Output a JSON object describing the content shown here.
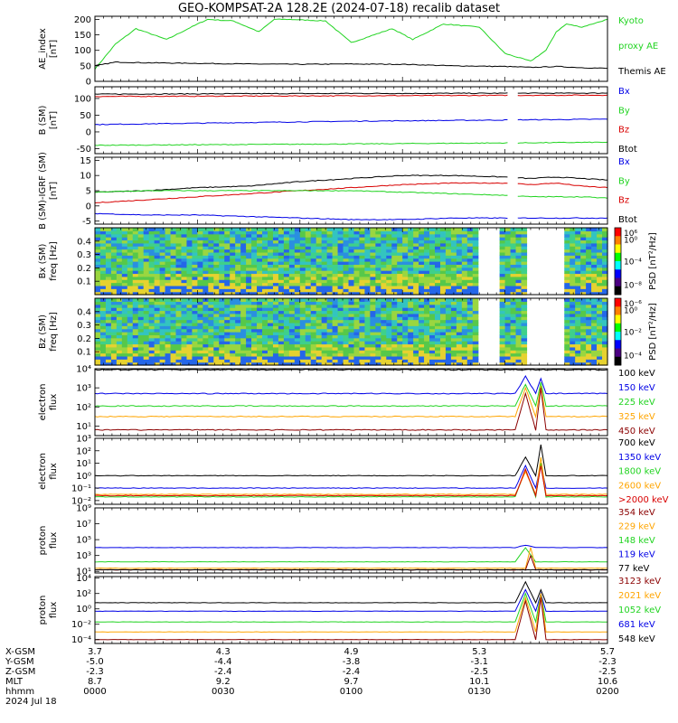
{
  "title": "GEO-KOMPSAT-2A 128.2E (2024-07-18) recalib dataset",
  "colors": {
    "black": "#000000",
    "blue": "#0000e6",
    "green": "#22d422",
    "red": "#d80000",
    "orange": "#ffa500",
    "darkred": "#8b0000"
  },
  "panels": [
    {
      "id": "ae",
      "type": "line",
      "ylabel": [
        "AE_index",
        "[nT]"
      ],
      "ylim": [
        0,
        210
      ],
      "ticks": [
        "0",
        "50",
        "100",
        "150",
        "200"
      ],
      "tickvals": [
        0,
        50,
        100,
        150,
        200
      ],
      "scale": "linear",
      "legend": [
        {
          "text": "Kyoto",
          "color": "#22d422"
        },
        {
          "text": "proxy AE",
          "color": "#22d422"
        },
        {
          "text": "Themis AE",
          "color": "#000000"
        }
      ],
      "series": [
        {
          "name": "Kyoto proxy AE",
          "color": "#22d422",
          "x": [
            0,
            4,
            8,
            14,
            20,
            22,
            27,
            32,
            35,
            38,
            45,
            50,
            58,
            62,
            68,
            75,
            80,
            85,
            88,
            90,
            92,
            95,
            98,
            100
          ],
          "y": [
            40,
            120,
            170,
            135,
            185,
            200,
            195,
            160,
            200,
            200,
            195,
            125,
            170,
            135,
            185,
            175,
            90,
            65,
            100,
            160,
            185,
            175,
            190,
            200
          ]
        },
        {
          "name": "Themis AE",
          "color": "#000000",
          "x": [
            0,
            4,
            10,
            20,
            30,
            40,
            50,
            60,
            70,
            80,
            85,
            90,
            95,
            100
          ],
          "y": [
            50,
            62,
            60,
            58,
            56,
            55,
            56,
            55,
            50,
            48,
            45,
            48,
            44,
            42
          ]
        }
      ]
    },
    {
      "id": "bsm",
      "type": "line",
      "ylabel": [
        "B (SM)",
        "[nT]"
      ],
      "ylim": [
        -65,
        135
      ],
      "ticks": [
        "-50",
        "0",
        "50",
        "100"
      ],
      "tickvals": [
        -50,
        0,
        50,
        100
      ],
      "scale": "linear",
      "legend": [
        {
          "text": "Bx",
          "color": "#0000e6"
        },
        {
          "text": "By",
          "color": "#22d422"
        },
        {
          "text": "Bz",
          "color": "#d80000"
        },
        {
          "text": "Btot",
          "color": "#000000"
        }
      ],
      "series": [
        {
          "name": "Btot",
          "color": "#000000",
          "x": [
            0,
            50,
            100
          ],
          "y": [
            113,
            115,
            116
          ]
        },
        {
          "name": "Bz",
          "color": "#d80000",
          "x": [
            0,
            50,
            100
          ],
          "y": [
            106,
            108,
            110
          ]
        },
        {
          "name": "Bx",
          "color": "#0000e6",
          "x": [
            0,
            50,
            100
          ],
          "y": [
            22,
            32,
            38
          ]
        },
        {
          "name": "By",
          "color": "#22d422",
          "x": [
            0,
            50,
            100
          ],
          "y": [
            -40,
            -36,
            -31
          ]
        }
      ]
    },
    {
      "id": "digrf",
      "type": "line",
      "ylabel": [
        "B (SM)-IGRF (SM)",
        "[nT]"
      ],
      "ylim": [
        -6,
        16
      ],
      "ticks": [
        "-5",
        "0",
        "5",
        "10",
        "15"
      ],
      "tickvals": [
        -5,
        0,
        5,
        10,
        15
      ],
      "scale": "linear",
      "legend": [
        {
          "text": "Bx",
          "color": "#0000e6"
        },
        {
          "text": "By",
          "color": "#22d422"
        },
        {
          "text": "Bz",
          "color": "#d80000"
        },
        {
          "text": "Btot",
          "color": "#000000"
        }
      ],
      "series": [
        {
          "name": "Btot",
          "color": "#000000",
          "x": [
            0,
            10,
            20,
            30,
            40,
            50,
            60,
            70,
            80,
            85,
            90,
            95,
            100
          ],
          "y": [
            4.5,
            5,
            6,
            6.5,
            8,
            9,
            10,
            10,
            9.5,
            9,
            9.5,
            9,
            8.5
          ]
        },
        {
          "name": "Bz",
          "color": "#d80000",
          "x": [
            0,
            10,
            20,
            30,
            40,
            50,
            60,
            70,
            80,
            85,
            90,
            95,
            100
          ],
          "y": [
            1,
            2,
            3,
            4,
            5,
            6,
            7,
            7.5,
            7.5,
            7,
            7.5,
            6.5,
            6
          ]
        },
        {
          "name": "By",
          "color": "#22d422",
          "x": [
            0,
            10,
            20,
            30,
            40,
            50,
            60,
            70,
            80,
            85,
            90,
            95,
            100
          ],
          "y": [
            4.5,
            5,
            5,
            5,
            5,
            5,
            4.5,
            4,
            3.5,
            3,
            3,
            3,
            2.5
          ]
        },
        {
          "name": "Bx",
          "color": "#0000e6",
          "x": [
            0,
            10,
            20,
            30,
            40,
            50,
            60,
            70,
            80,
            85,
            90,
            95,
            100
          ],
          "y": [
            -2.5,
            -3,
            -3,
            -3.5,
            -4,
            -4.5,
            -4.5,
            -4,
            -4,
            -4,
            -4,
            -4,
            -4
          ]
        }
      ]
    },
    {
      "id": "bxspec",
      "type": "spectrogram",
      "ylabel": [
        "Bx (SM)",
        "freq [Hz]"
      ],
      "ylim": [
        0,
        0.5
      ],
      "ticks": [
        "0.1",
        "0.2",
        "0.3",
        "0.4"
      ],
      "tickvals": [
        0.1,
        0.2,
        0.3,
        0.4
      ],
      "colorbar": {
        "label": "PSD [nT²/Hz]",
        "ticks": [
          "10⁰",
          "10⁻⁴",
          "10⁻⁸",
          "10⁶"
        ]
      },
      "gaps": [
        [
          74,
          78
        ],
        [
          84,
          91
        ]
      ]
    },
    {
      "id": "bzspec",
      "type": "spectrogram",
      "ylabel": [
        "Bz (SM)",
        "freq [Hz]"
      ],
      "ylim": [
        0,
        0.5
      ],
      "ticks": [
        "0.1",
        "0.2",
        "0.3",
        "0.4"
      ],
      "tickvals": [
        0.1,
        0.2,
        0.3,
        0.4
      ],
      "colorbar": {
        "label": "PSD [nT²/Hz]",
        "ticks": [
          "10⁰",
          "10⁻²",
          "10⁻⁴",
          "10⁻⁶"
        ]
      },
      "gaps": [
        [
          74,
          78
        ],
        [
          84,
          91
        ]
      ]
    },
    {
      "id": "eflux1",
      "type": "line",
      "ylabel": [
        "electron",
        "flux"
      ],
      "ylim": [
        0.5,
        4.0
      ],
      "ticks": [
        "10⁴",
        "10³",
        "10²",
        "10¹"
      ],
      "tickvals": [
        4,
        3,
        2,
        1
      ],
      "scale": "log10",
      "legend": [
        {
          "text": "100 keV",
          "color": "#000000"
        },
        {
          "text": "150 keV",
          "color": "#0000e6"
        },
        {
          "text": "225 keV",
          "color": "#22d422"
        },
        {
          "text": "325 keV",
          "color": "#ffa500"
        },
        {
          "text": "450 keV",
          "color": "#8b0000"
        }
      ],
      "series": [
        {
          "name": "100 keV",
          "color": "#000000",
          "x": [
            0,
            100
          ],
          "y": [
            3.95,
            3.95
          ]
        },
        {
          "name": "150 keV",
          "color": "#0000e6",
          "x": [
            0,
            82,
            84,
            86,
            87,
            88,
            100
          ],
          "y": [
            2.7,
            2.7,
            3.6,
            2.7,
            3.5,
            2.7,
            2.7
          ]
        },
        {
          "name": "225 keV",
          "color": "#22d422",
          "x": [
            0,
            82,
            84,
            86,
            87,
            88,
            100
          ],
          "y": [
            2.05,
            2.05,
            3.2,
            2.05,
            3.3,
            2.05,
            2.05
          ]
        },
        {
          "name": "325 keV",
          "color": "#ffa500",
          "x": [
            0,
            82,
            84,
            86,
            87,
            88,
            100
          ],
          "y": [
            1.5,
            1.5,
            3.0,
            1.5,
            3.1,
            1.5,
            1.5
          ]
        },
        {
          "name": "450 keV",
          "color": "#8b0000",
          "x": [
            0,
            82,
            84,
            86,
            87,
            88,
            100
          ],
          "y": [
            0.8,
            0.8,
            2.7,
            0.8,
            3.0,
            0.8,
            0.8
          ]
        }
      ]
    },
    {
      "id": "eflux2",
      "type": "line",
      "ylabel": [
        "electron",
        "flux"
      ],
      "ylim": [
        -2.3,
        3.0
      ],
      "ticks": [
        "10³",
        "10²",
        "10¹",
        "10⁰",
        "10⁻¹",
        "10⁻²"
      ],
      "tickvals": [
        3,
        2,
        1,
        0,
        -1,
        -2
      ],
      "scale": "log10",
      "legend": [
        {
          "text": "700 keV",
          "color": "#000000"
        },
        {
          "text": "1350 keV",
          "color": "#0000e6"
        },
        {
          "text": "1800 keV",
          "color": "#22d422"
        },
        {
          "text": "2600 keV",
          "color": "#ffa500"
        },
        {
          "text": ">2000 keV",
          "color": "#d80000"
        }
      ],
      "series": [
        {
          "name": "700 keV",
          "color": "#000000",
          "x": [
            0,
            82,
            84,
            86,
            87,
            88,
            100
          ],
          "y": [
            0,
            0,
            1.5,
            0,
            2.5,
            0,
            0
          ]
        },
        {
          "name": "1350 keV",
          "color": "#0000e6",
          "x": [
            0,
            82,
            84,
            86,
            87,
            88,
            100
          ],
          "y": [
            -1.0,
            -1.0,
            0.8,
            -1.0,
            1.0,
            -1.0,
            -1.0
          ]
        },
        {
          "name": "1800 keV",
          "color": "#22d422",
          "x": [
            0,
            82,
            84,
            86,
            87,
            88,
            100
          ],
          "y": [
            -1.7,
            -1.7,
            0.5,
            -1.7,
            1.0,
            -1.7,
            -1.7
          ]
        },
        {
          "name": "2600 keV",
          "color": "#ffa500",
          "x": [
            0,
            82,
            84,
            86,
            87,
            88,
            100
          ],
          "y": [
            -1.5,
            -1.5,
            0.3,
            -1.5,
            1.5,
            -1.5,
            -1.5
          ]
        },
        {
          "name": ">2000 keV",
          "color": "#d80000",
          "x": [
            0,
            82,
            84,
            86,
            87,
            88,
            100
          ],
          "y": [
            -1.6,
            -1.6,
            0.5,
            -1.6,
            0.8,
            -1.6,
            -1.6
          ]
        }
      ]
    },
    {
      "id": "pflux1",
      "type": "line",
      "ylabel": [
        "proton",
        "flux"
      ],
      "ylim": [
        0.8,
        9.0
      ],
      "ticks": [
        "10⁹",
        "10⁷",
        "10⁵",
        "10³",
        "10¹"
      ],
      "tickvals": [
        9,
        7,
        5,
        3,
        1
      ],
      "scale": "log10",
      "legend": [
        {
          "text": "354 keV",
          "color": "#8b0000"
        },
        {
          "text": "229 keV",
          "color": "#ffa500"
        },
        {
          "text": "148 keV",
          "color": "#22d422"
        },
        {
          "text": "119 keV",
          "color": "#0000e6"
        },
        {
          "text": "77 keV",
          "color": "#000000"
        }
      ],
      "series": [
        {
          "name": "119 keV",
          "color": "#0000e6",
          "x": [
            0,
            82,
            84,
            86,
            100
          ],
          "y": [
            4.0,
            4.0,
            4.3,
            4.0,
            4.0
          ]
        },
        {
          "name": "148 keV",
          "color": "#22d422",
          "x": [
            0,
            82,
            84,
            86,
            100
          ],
          "y": [
            2.2,
            2.2,
            4.0,
            2.2,
            2.2
          ]
        },
        {
          "name": "229 keV",
          "color": "#ffa500",
          "x": [
            0,
            84,
            85,
            86,
            87,
            100
          ],
          "y": [
            1.4,
            1.4,
            4.0,
            1.4,
            1.4,
            1.4
          ]
        },
        {
          "name": "354 keV",
          "color": "#8b0000",
          "x": [
            0,
            84,
            85,
            86,
            100
          ],
          "y": [
            1.2,
            1.2,
            3.0,
            1.2,
            1.2
          ]
        },
        {
          "name": "77 keV",
          "color": "#000000",
          "x": [
            0,
            100
          ],
          "y": [
            1.2,
            1.2
          ]
        }
      ]
    },
    {
      "id": "pflux2",
      "type": "line",
      "ylabel": [
        "proton",
        "flux"
      ],
      "ylim": [
        -4.5,
        4.2
      ],
      "ticks": [
        "10⁴",
        "10²",
        "10⁰",
        "10⁻²",
        "10⁻⁴"
      ],
      "tickvals": [
        4,
        2,
        0,
        -2,
        -4
      ],
      "scale": "log10",
      "legend": [
        {
          "text": "3123 keV",
          "color": "#8b0000"
        },
        {
          "text": "2021 keV",
          "color": "#ffa500"
        },
        {
          "text": "1052 keV",
          "color": "#22d422"
        },
        {
          "text": "681 keV",
          "color": "#0000e6"
        },
        {
          "text": "548 keV",
          "color": "#000000"
        }
      ],
      "series": [
        {
          "name": "548 keV",
          "color": "#000000",
          "x": [
            0,
            82,
            84,
            86,
            87,
            88,
            100
          ],
          "y": [
            0.8,
            0.8,
            3.5,
            0.8,
            2.5,
            0.8,
            0.8
          ]
        },
        {
          "name": "681 keV",
          "color": "#0000e6",
          "x": [
            0,
            82,
            84,
            86,
            87,
            88,
            100
          ],
          "y": [
            -0.3,
            -0.3,
            2.5,
            -0.3,
            2.0,
            -0.3,
            -0.3
          ]
        },
        {
          "name": "1052 keV",
          "color": "#22d422",
          "x": [
            0,
            82,
            84,
            86,
            87,
            88,
            100
          ],
          "y": [
            -1.7,
            -1.7,
            2.0,
            -1.7,
            2.0,
            -1.7,
            -1.7
          ]
        },
        {
          "name": "2021 keV",
          "color": "#ffa500",
          "x": [
            0,
            82,
            84,
            86,
            87,
            88,
            100
          ],
          "y": [
            -3.0,
            -3.0,
            1.5,
            -3.0,
            2.0,
            -3.0,
            -3.0
          ]
        },
        {
          "name": "3123 keV",
          "color": "#8b0000",
          "x": [
            0,
            82,
            84,
            86,
            87,
            88,
            100
          ],
          "y": [
            -4.0,
            -4.0,
            1.0,
            -4.0,
            1.5,
            -4.0,
            -4.0
          ]
        }
      ]
    }
  ],
  "xaxis": {
    "rows": [
      {
        "label": "X-GSM",
        "values": [
          "3.7",
          "4.3",
          "4.9",
          "5.3",
          "5.7"
        ]
      },
      {
        "label": "Y-GSM",
        "values": [
          "-5.0",
          "-4.4",
          "-3.8",
          "-3.1",
          "-2.3"
        ]
      },
      {
        "label": "Z-GSM",
        "values": [
          "-2.3",
          "-2.4",
          "-2.4",
          "-2.5",
          "-2.5"
        ]
      },
      {
        "label": "MLT",
        "values": [
          "8.7",
          "9.2",
          "9.7",
          "10.1",
          "10.6"
        ]
      },
      {
        "label": "hhmm",
        "values": [
          "0000",
          "0030",
          "0100",
          "0130",
          "0200"
        ]
      }
    ],
    "date": "2024 Jul 18"
  }
}
